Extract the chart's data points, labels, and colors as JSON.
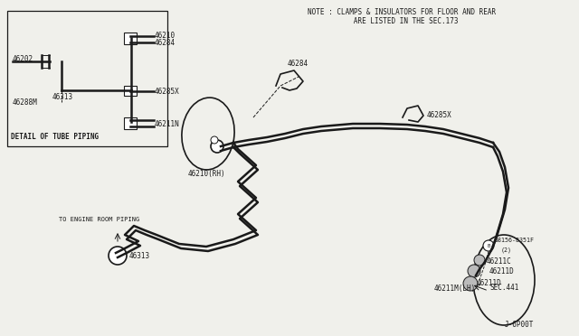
{
  "bg_color": "#f0f0eb",
  "line_color": "#1a1a1a",
  "box_bg": "#f0f0eb",
  "note_text1": "NOTE : CLAMPS & INSULATORS FOR FLOOR AND REAR",
  "note_text2": "           ARE LISTED IN THE SEC.173",
  "detail_title": "DETAIL OF TUBE PIPING",
  "footer_text": "J-6P00T",
  "to_engine_text": "TO ENGINE ROOM PIPING",
  "lw_main": 1.8,
  "lw_med": 1.2,
  "lw_thin": 0.7
}
